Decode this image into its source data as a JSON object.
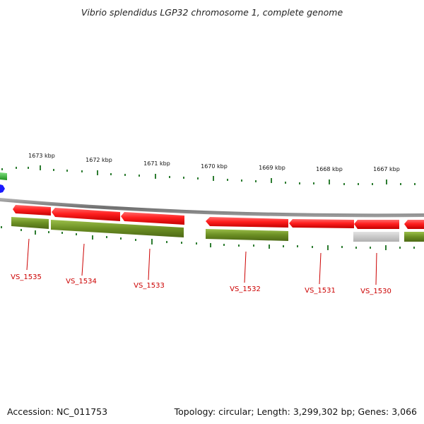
{
  "title": "Vibrio splendidus LGP32 chromosome 1, complete genome",
  "footer": {
    "accession": "Accession: NC_011753",
    "info": "Topology: circular; Length: 3,299,302 bp; Genes: 3,066"
  },
  "scale_labels": [
    "1673 kbp",
    "1672 kbp",
    "1671 kbp",
    "1670 kbp",
    "1669 kbp",
    "1668 kbp",
    "1667 kbp"
  ],
  "gene_labels": [
    "VS_1535",
    "VS_1534",
    "VS_1533",
    "VS_1532",
    "VS_1531",
    "VS_1530"
  ],
  "colors": {
    "gene_red": "#ff1f1f",
    "cds_olive": "#6b8e23",
    "rna_grey": "#c8c8c8",
    "backbone": "#8a8a8a",
    "tick_green": "#2e7d32",
    "label_red": "#cc0000",
    "marker_blue": "#1a1aff",
    "marker_green": "#22aa22"
  }
}
